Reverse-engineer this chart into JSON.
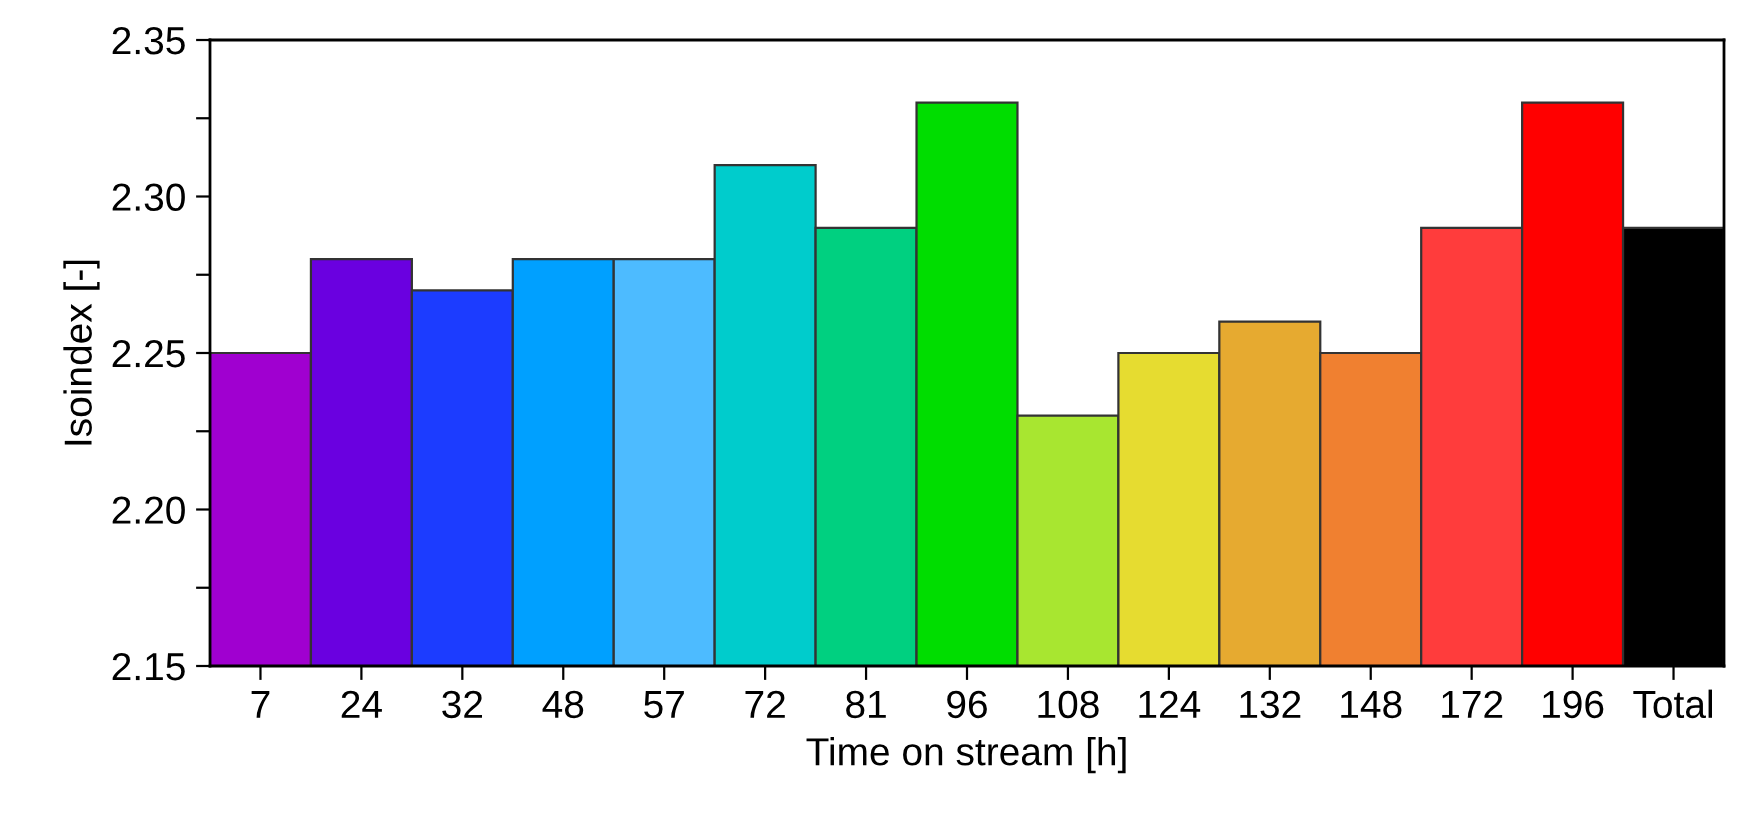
{
  "chart_data": {
    "type": "bar",
    "xlabel": "Time on stream [h]",
    "ylabel": "Isoindex [-]",
    "categories": [
      "7",
      "24",
      "32",
      "48",
      "57",
      "72",
      "81",
      "96",
      "108",
      "124",
      "132",
      "148",
      "172",
      "196",
      "Total"
    ],
    "values": [
      2.25,
      2.28,
      2.27,
      2.28,
      2.28,
      2.31,
      2.29,
      2.33,
      2.23,
      2.25,
      2.26,
      2.25,
      2.29,
      2.33,
      2.29
    ],
    "colors": [
      "#a000d0",
      "#6a00e0",
      "#1c3cff",
      "#00a0ff",
      "#4dbbff",
      "#00cccc",
      "#00d080",
      "#00dd00",
      "#a8e630",
      "#e6dc30",
      "#e6aa30",
      "#f08030",
      "#ff3c3c",
      "#ff0000",
      "#000000"
    ],
    "ylim": [
      2.15,
      2.35
    ],
    "yticks": [
      {
        "value": 2.15,
        "label": "2.15"
      },
      {
        "value": 2.175,
        "label": null
      },
      {
        "value": 2.2,
        "label": "2.20"
      },
      {
        "value": 2.225,
        "label": null
      },
      {
        "value": 2.25,
        "label": "2.25"
      },
      {
        "value": 2.275,
        "label": null
      },
      {
        "value": 2.3,
        "label": "2.30"
      },
      {
        "value": 2.325,
        "label": null
      },
      {
        "value": 2.35,
        "label": "2.35"
      }
    ],
    "grid": false
  }
}
